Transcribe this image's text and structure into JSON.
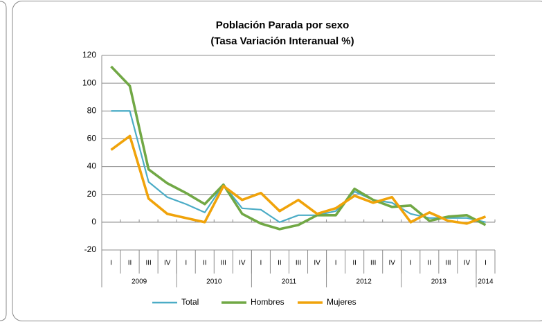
{
  "chart_data": {
    "type": "line",
    "title": "Población Parada por sexo",
    "subtitle": "(Tasa Variación Interanual %)",
    "categories": [
      "I",
      "II",
      "III",
      "IV",
      "I",
      "II",
      "III",
      "IV",
      "I",
      "II",
      "III",
      "IV",
      "I",
      "II",
      "III",
      "IV",
      "I",
      "II",
      "III",
      "IV",
      "I"
    ],
    "groups": [
      {
        "label": "2009",
        "span": 4
      },
      {
        "label": "2010",
        "span": 4
      },
      {
        "label": "2011",
        "span": 4
      },
      {
        "label": "2012",
        "span": 4
      },
      {
        "label": "2013",
        "span": 4
      },
      {
        "label": "2014",
        "span": 1
      }
    ],
    "series": [
      {
        "name": "Total",
        "color": "#4bacc6",
        "values": [
          80,
          80,
          29,
          18,
          13,
          7,
          27,
          10,
          9,
          0,
          5,
          5,
          8,
          22,
          16,
          14,
          6,
          3,
          3,
          3,
          0
        ]
      },
      {
        "name": "Hombres",
        "color": "#71a845",
        "values": [
          112,
          98,
          38,
          28,
          21,
          13,
          27,
          6,
          -1,
          -5,
          -2,
          5,
          5,
          24,
          16,
          11,
          12,
          1,
          4,
          5,
          -2
        ]
      },
      {
        "name": "Mujeres",
        "color": "#f0a30a",
        "values": [
          52,
          62,
          17,
          6,
          3,
          0,
          26,
          16,
          21,
          8,
          16,
          6,
          10,
          19,
          14,
          18,
          0,
          7,
          1,
          -1,
          4
        ]
      }
    ],
    "ylim": [
      -20,
      120
    ],
    "yticks": [
      -20,
      0,
      20,
      40,
      60,
      80,
      100,
      120
    ],
    "grid": true,
    "legend": "bottom"
  }
}
